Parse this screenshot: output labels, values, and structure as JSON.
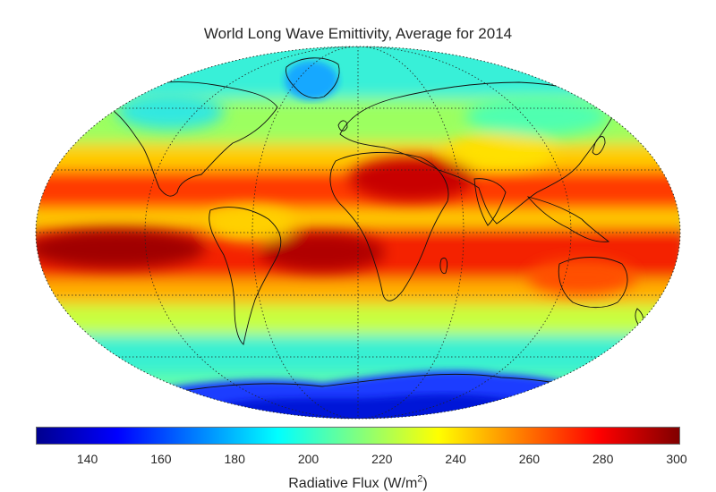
{
  "title": "World Long Wave Emittivity, Average for 2014",
  "projection": "robinson-like world ellipse",
  "colormap": "jet",
  "colorbar": {
    "label_main": "Radiative Flux (W/m",
    "label_sup": "2",
    "label_close": ")",
    "min": 125,
    "max": 300,
    "ticks": [
      "140",
      "160",
      "180",
      "200",
      "220",
      "240",
      "260",
      "280",
      "300"
    ],
    "tick_values": [
      140,
      160,
      180,
      200,
      220,
      240,
      260,
      280,
      300
    ]
  },
  "bands": [
    {
      "name": "antarctica",
      "color": "#1a3cff"
    },
    {
      "name": "southern-ocean",
      "color": "#39f0d2"
    },
    {
      "name": "south-midlat",
      "color": "#c8ff40"
    },
    {
      "name": "south-subtropic",
      "color": "#ffb000"
    },
    {
      "name": "tropical-south",
      "color": "#f42000"
    },
    {
      "name": "equatorial",
      "color": "#ffd000"
    },
    {
      "name": "north-tropic",
      "color": "#ff3a00"
    },
    {
      "name": "north-subtropic",
      "color": "#ffcc00"
    },
    {
      "name": "north-midlat",
      "color": "#9cff60"
    },
    {
      "name": "north-high",
      "color": "#38f0d8"
    },
    {
      "name": "greenland",
      "color": "#18a8ff"
    }
  ]
}
